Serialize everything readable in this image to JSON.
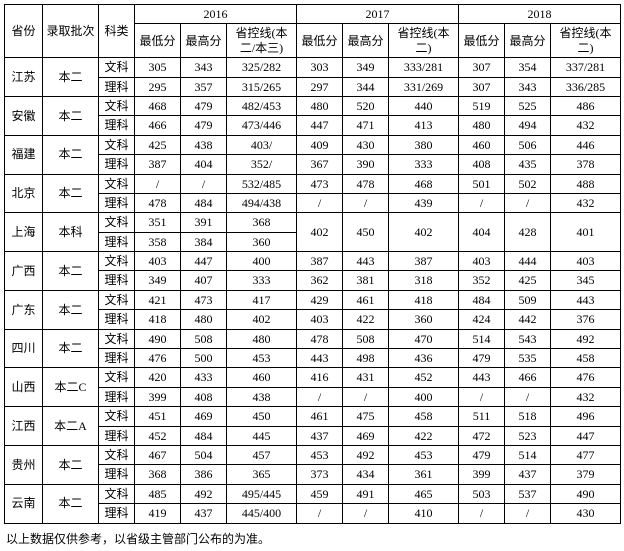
{
  "headers": {
    "province": "省份",
    "batch": "录取批次",
    "subject": "科类",
    "years": [
      "2016",
      "2017",
      "2018"
    ],
    "cols": {
      "low": "最低分",
      "high": "最高分",
      "line_2016": "省控线(本二/本三)",
      "line_2017": "省控线(本二)",
      "line_2018": "省控线(本二)"
    }
  },
  "subjects": {
    "wen": "文科",
    "li": "理科"
  },
  "footnote": "以上数据仅供参考，以省级主管部门公布的为准。",
  "rows": [
    {
      "province": "江苏",
      "batch": "本二",
      "wen": {
        "y2016": [
          "305",
          "343",
          "325/282"
        ],
        "y2017": [
          "303",
          "349",
          "333/281"
        ],
        "y2018": [
          "307",
          "354",
          "337/281"
        ]
      },
      "li": {
        "y2016": [
          "295",
          "357",
          "315/265"
        ],
        "y2017": [
          "297",
          "344",
          "331/269"
        ],
        "y2018": [
          "307",
          "343",
          "336/285"
        ]
      }
    },
    {
      "province": "安徽",
      "batch": "本二",
      "wen": {
        "y2016": [
          "468",
          "479",
          "482/453"
        ],
        "y2017": [
          "480",
          "520",
          "440"
        ],
        "y2018": [
          "519",
          "525",
          "486"
        ]
      },
      "li": {
        "y2016": [
          "466",
          "479",
          "473/446"
        ],
        "y2017": [
          "447",
          "471",
          "413"
        ],
        "y2018": [
          "480",
          "494",
          "432"
        ]
      }
    },
    {
      "province": "福建",
      "batch": "本二",
      "wen": {
        "y2016": [
          "425",
          "438",
          "403/"
        ],
        "y2017": [
          "409",
          "430",
          "380"
        ],
        "y2018": [
          "460",
          "506",
          "446"
        ]
      },
      "li": {
        "y2016": [
          "387",
          "404",
          "352/"
        ],
        "y2017": [
          "367",
          "390",
          "333"
        ],
        "y2018": [
          "408",
          "435",
          "378"
        ]
      }
    },
    {
      "province": "北京",
      "batch": "本二",
      "wen": {
        "y2016": [
          "/",
          "/",
          "532/485"
        ],
        "y2017": [
          "473",
          "478",
          "468"
        ],
        "y2018": [
          "501",
          "502",
          "488"
        ]
      },
      "li": {
        "y2016": [
          "478",
          "484",
          "494/438"
        ],
        "y2017": [
          "/",
          "/",
          "439"
        ],
        "y2018": [
          "/",
          "/",
          "432"
        ]
      }
    },
    {
      "province": "上海",
      "batch": "本科",
      "wen": {
        "y2016": [
          "351",
          "391",
          "368"
        ],
        "y2017_merged": true,
        "y2017": [
          "402",
          "450",
          "402"
        ],
        "y2018_merged": true,
        "y2018": [
          "404",
          "428",
          "401"
        ]
      },
      "li": {
        "y2016": [
          "358",
          "384",
          "360"
        ]
      }
    },
    {
      "province": "广西",
      "batch": "本二",
      "wen": {
        "y2016": [
          "403",
          "447",
          "400"
        ],
        "y2017": [
          "387",
          "443",
          "387"
        ],
        "y2018": [
          "403",
          "444",
          "403"
        ]
      },
      "li": {
        "y2016": [
          "349",
          "407",
          "333"
        ],
        "y2017": [
          "362",
          "381",
          "318"
        ],
        "y2018": [
          "352",
          "425",
          "345"
        ]
      }
    },
    {
      "province": "广东",
      "batch": "本二",
      "wen": {
        "y2016": [
          "421",
          "473",
          "417"
        ],
        "y2017": [
          "429",
          "461",
          "418"
        ],
        "y2018": [
          "484",
          "509",
          "443"
        ]
      },
      "li": {
        "y2016": [
          "418",
          "480",
          "402"
        ],
        "y2017": [
          "403",
          "422",
          "360"
        ],
        "y2018": [
          "424",
          "442",
          "376"
        ]
      }
    },
    {
      "province": "四川",
      "batch": "本二",
      "wen": {
        "y2016": [
          "490",
          "508",
          "480"
        ],
        "y2017": [
          "478",
          "508",
          "470"
        ],
        "y2018": [
          "514",
          "543",
          "492"
        ]
      },
      "li": {
        "y2016": [
          "476",
          "500",
          "453"
        ],
        "y2017": [
          "443",
          "498",
          "436"
        ],
        "y2018": [
          "479",
          "535",
          "458"
        ]
      }
    },
    {
      "province": "山西",
      "batch": "本二C",
      "wen": {
        "y2016": [
          "420",
          "433",
          "460"
        ],
        "y2017": [
          "416",
          "431",
          "452"
        ],
        "y2018": [
          "443",
          "466",
          "476"
        ]
      },
      "li": {
        "y2016": [
          "399",
          "408",
          "438"
        ],
        "y2017": [
          "/",
          "/",
          "400"
        ],
        "y2018": [
          "/",
          "/",
          "432"
        ]
      }
    },
    {
      "province": "江西",
      "batch": "本二A",
      "wen": {
        "y2016": [
          "451",
          "469",
          "450"
        ],
        "y2017": [
          "461",
          "475",
          "458"
        ],
        "y2018": [
          "511",
          "518",
          "496"
        ]
      },
      "li": {
        "y2016": [
          "452",
          "484",
          "445"
        ],
        "y2017": [
          "437",
          "469",
          "422"
        ],
        "y2018": [
          "472",
          "523",
          "447"
        ]
      }
    },
    {
      "province": "贵州",
      "batch": "本二",
      "wen": {
        "y2016": [
          "467",
          "504",
          "457"
        ],
        "y2017": [
          "453",
          "492",
          "453"
        ],
        "y2018": [
          "479",
          "514",
          "477"
        ]
      },
      "li": {
        "y2016": [
          "368",
          "386",
          "365"
        ],
        "y2017": [
          "373",
          "434",
          "361"
        ],
        "y2018": [
          "399",
          "437",
          "379"
        ]
      }
    },
    {
      "province": "云南",
      "batch": "本二",
      "wen": {
        "y2016": [
          "485",
          "492",
          "495/445"
        ],
        "y2017": [
          "459",
          "491",
          "465"
        ],
        "y2018": [
          "503",
          "537",
          "490"
        ]
      },
      "li": {
        "y2016": [
          "419",
          "437",
          "445/400"
        ],
        "y2017": [
          "/",
          "/",
          "410"
        ],
        "y2018": [
          "/",
          "/",
          "430"
        ]
      }
    }
  ]
}
